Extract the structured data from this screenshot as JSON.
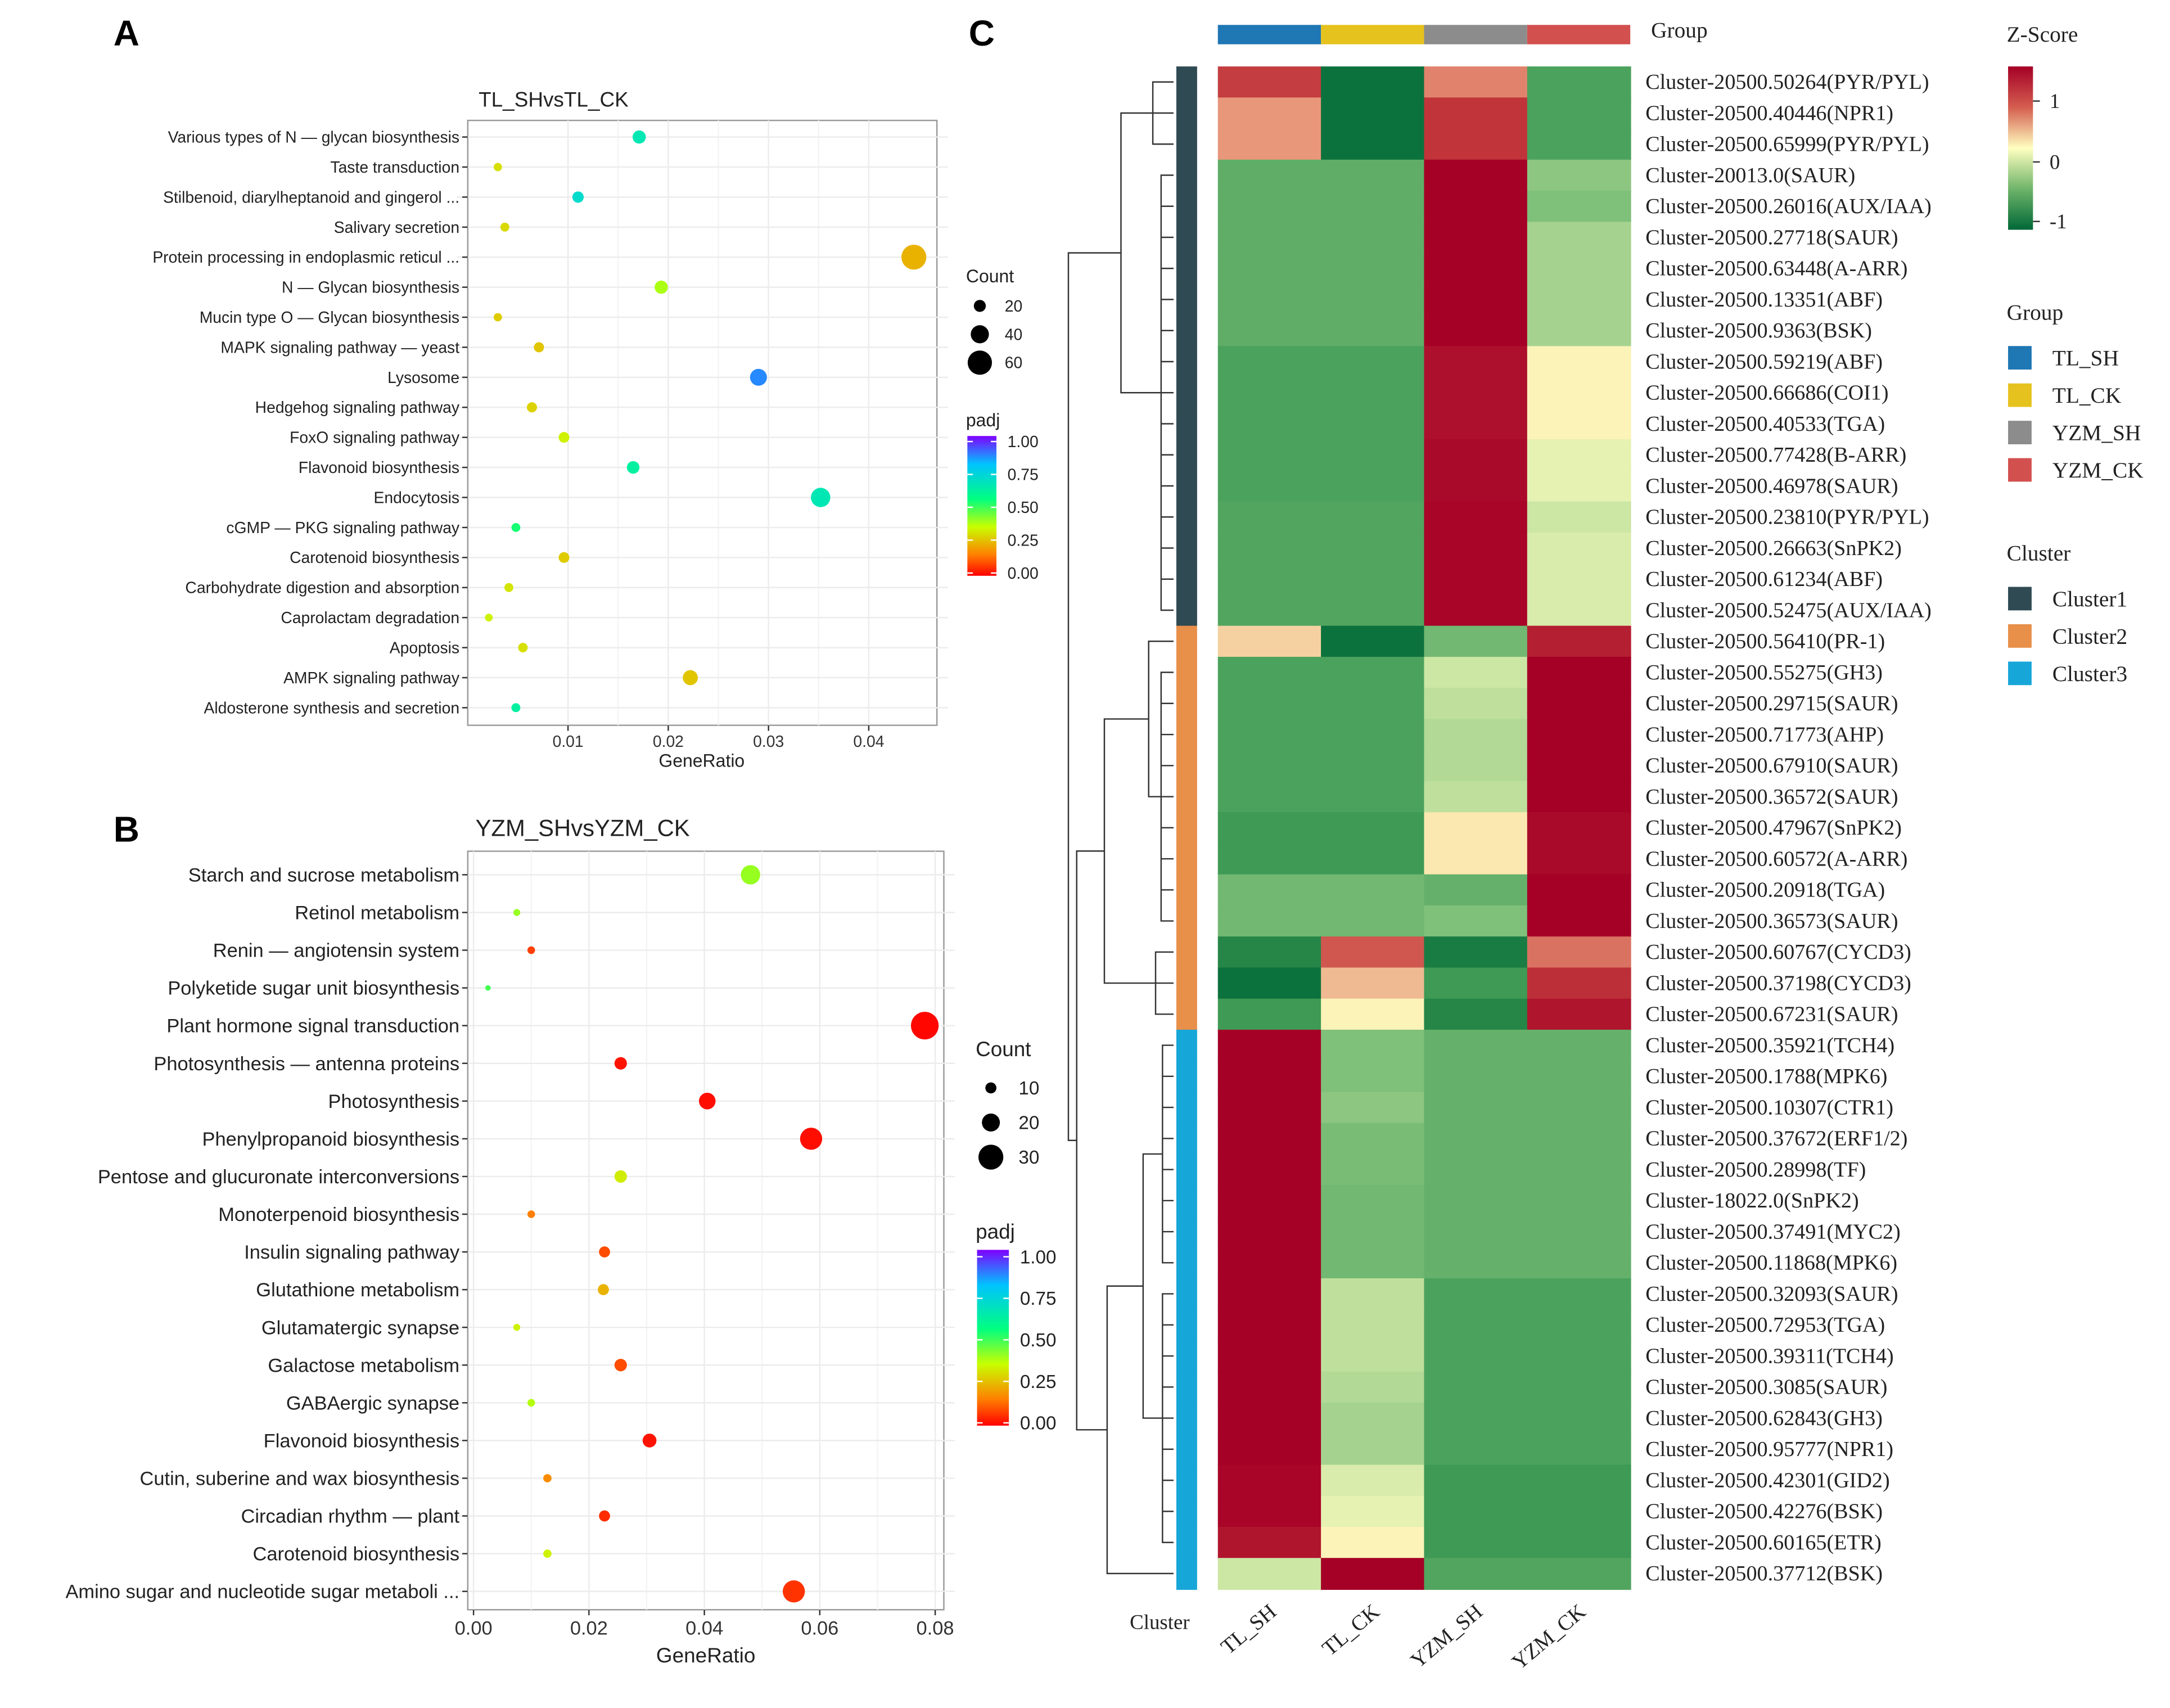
{
  "panels": {
    "a": "A",
    "b": "B",
    "c": "C"
  },
  "chart_data": [
    {
      "type": "scatter",
      "panel": "A",
      "title": "TL_SHvsTL_CK",
      "xlabel": "GeneRatio",
      "xlim": [
        0.0,
        0.0468
      ],
      "xticks": [
        0.01,
        0.02,
        0.03,
        0.04
      ],
      "xtick_labels": [
        "0.01",
        "0.02",
        "0.03",
        "0.04"
      ],
      "size_legend": {
        "title": "Count",
        "values": [
          20,
          40,
          60
        ],
        "labels": [
          "20",
          "40",
          "60"
        ]
      },
      "color_legend": {
        "title": "padj",
        "range": [
          0,
          1
        ],
        "ticks": [
          "1.00",
          "0.75",
          "0.50",
          "0.25",
          "0.00"
        ],
        "colors": [
          "#7f00ff",
          "#00c3ff",
          "#00ff80",
          "#c8ff00",
          "#ff7f00",
          "#ff0000"
        ]
      },
      "terms": [
        {
          "label": "Various types of N — glycan biosynthesis",
          "ratio": 0.0171,
          "count": 24,
          "padj": 0.68
        },
        {
          "label": "Taste transduction",
          "ratio": 0.003,
          "count": 8,
          "padj": 0.35
        },
        {
          "label": "Stilbenoid, diarylheptanoid and gingerol ...",
          "ratio": 0.011,
          "count": 18,
          "padj": 0.72
        },
        {
          "label": "Salivary secretion",
          "ratio": 0.0037,
          "count": 10,
          "padj": 0.34
        },
        {
          "label": "Protein processing in endoplasmic reticul ...",
          "ratio": 0.0445,
          "count": 62,
          "padj": 0.28
        },
        {
          "label": "N — Glycan biosynthesis",
          "ratio": 0.0193,
          "count": 24,
          "padj": 0.43
        },
        {
          "label": "Mucin type O — Glycan biosynthesis",
          "ratio": 0.003,
          "count": 8,
          "padj": 0.32
        },
        {
          "label": "MAPK signaling pathway — yeast",
          "ratio": 0.0071,
          "count": 14,
          "padj": 0.31
        },
        {
          "label": "Lysosome",
          "ratio": 0.029,
          "count": 36,
          "padj": 0.86
        },
        {
          "label": "Hedgehog signaling pathway",
          "ratio": 0.0064,
          "count": 14,
          "padj": 0.33
        },
        {
          "label": "FoxO signaling pathway",
          "ratio": 0.0096,
          "count": 16,
          "padj": 0.38
        },
        {
          "label": "Flavonoid biosynthesis",
          "ratio": 0.0165,
          "count": 22,
          "padj": 0.65
        },
        {
          "label": "Endocytosis",
          "ratio": 0.0352,
          "count": 44,
          "padj": 0.68
        },
        {
          "label": "cGMP — PKG signaling pathway",
          "ratio": 0.0048,
          "count": 10,
          "padj": 0.58
        },
        {
          "label": "Carotenoid biosynthesis",
          "ratio": 0.0096,
          "count": 16,
          "padj": 0.32
        },
        {
          "label": "Carbohydrate digestion and absorption",
          "ratio": 0.0041,
          "count": 10,
          "padj": 0.36
        },
        {
          "label": "Caprolactam degradation",
          "ratio": 0.0021,
          "count": 6,
          "padj": 0.38
        },
        {
          "label": "Apoptosis",
          "ratio": 0.0055,
          "count": 12,
          "padj": 0.35
        },
        {
          "label": "AMPK signaling pathway",
          "ratio": 0.0222,
          "count": 30,
          "padj": 0.31
        },
        {
          "label": "Aldosterone synthesis and secretion",
          "ratio": 0.0048,
          "count": 10,
          "padj": 0.65
        }
      ]
    },
    {
      "type": "scatter",
      "panel": "B",
      "title": "YZM_SHvsYZM_CK",
      "xlabel": "GeneRatio",
      "xlim": [
        -0.001,
        0.0815
      ],
      "xticks": [
        0.0,
        0.02,
        0.04,
        0.06,
        0.08
      ],
      "xtick_labels": [
        "0.00",
        "0.02",
        "0.04",
        "0.06",
        "0.08"
      ],
      "size_legend": {
        "title": "Count",
        "values": [
          10,
          20,
          30
        ],
        "labels": [
          "10",
          "20",
          "30"
        ]
      },
      "color_legend": {
        "title": "padj",
        "range": [
          0,
          1
        ],
        "ticks": [
          "1.00",
          "0.75",
          "0.50",
          "0.25",
          "0.00"
        ],
        "colors": [
          "#7f00ff",
          "#00c3ff",
          "#00ff80",
          "#c8ff00",
          "#ff7f00",
          "#ff0000"
        ]
      },
      "terms": [
        {
          "label": "Starch and sucrose metabolism",
          "ratio": 0.048,
          "count": 22,
          "padj": 0.45
        },
        {
          "label": "Retinol metabolism",
          "ratio": 0.0075,
          "count": 4,
          "padj": 0.45
        },
        {
          "label": "Renin — angiotensin system",
          "ratio": 0.01,
          "count": 5,
          "padj": 0.1
        },
        {
          "label": "Polyketide sugar unit biosynthesis",
          "ratio": 0.0025,
          "count": 2,
          "padj": 0.53
        },
        {
          "label": "Plant hormone signal transduction",
          "ratio": 0.0782,
          "count": 34,
          "padj": 0.01
        },
        {
          "label": "Photosynthesis — antenna proteins",
          "ratio": 0.0255,
          "count": 12,
          "padj": 0.03
        },
        {
          "label": "Photosynthesis",
          "ratio": 0.0405,
          "count": 18,
          "padj": 0.02
        },
        {
          "label": "Phenylpropanoid biosynthesis",
          "ratio": 0.0585,
          "count": 26,
          "padj": 0.02
        },
        {
          "label": "Pentose and glucuronate interconversions",
          "ratio": 0.0255,
          "count": 12,
          "padj": 0.37
        },
        {
          "label": "Monoterpenoid biosynthesis",
          "ratio": 0.01,
          "count": 5,
          "padj": 0.2
        },
        {
          "label": "Insulin signaling pathway",
          "ratio": 0.0227,
          "count": 10,
          "padj": 0.12
        },
        {
          "label": "Glutathione metabolism",
          "ratio": 0.0225,
          "count": 10,
          "padj": 0.28
        },
        {
          "label": "Glutamatergic synapse",
          "ratio": 0.0075,
          "count": 4,
          "padj": 0.38
        },
        {
          "label": "Galactose metabolism",
          "ratio": 0.0255,
          "count": 12,
          "padj": 0.12
        },
        {
          "label": "GABAergic synapse",
          "ratio": 0.01,
          "count": 5,
          "padj": 0.42
        },
        {
          "label": "Flavonoid biosynthesis",
          "ratio": 0.0305,
          "count": 14,
          "padj": 0.03
        },
        {
          "label": "Cutin, suberine and wax biosynthesis",
          "ratio": 0.0128,
          "count": 6,
          "padj": 0.22
        },
        {
          "label": "Circadian rhythm — plant",
          "ratio": 0.0227,
          "count": 10,
          "padj": 0.07
        },
        {
          "label": "Carotenoid biosynthesis",
          "ratio": 0.0128,
          "count": 6,
          "padj": 0.38
        },
        {
          "label": "Amino sugar and nucleotide sugar metaboli ...",
          "ratio": 0.0555,
          "count": 26,
          "padj": 0.08
        }
      ]
    },
    {
      "type": "heatmap",
      "panel": "C",
      "columns": [
        "TL_SH",
        "TL_CK",
        "YZM_SH",
        "YZM_CK"
      ],
      "column_colors": [
        "#1f77b4",
        "#e6c21e",
        "#8c8c8c",
        "#d2504e"
      ],
      "group_label": "Group",
      "cluster_label": "Cluster",
      "zscore_legend": {
        "title": "Z-Score",
        "ticks": [
          "1",
          "0",
          "-1"
        ],
        "range": [
          -1.5,
          1.5
        ]
      },
      "group_legend": {
        "title": "Group",
        "items": [
          "TL_SH",
          "TL_CK",
          "YZM_SH",
          "YZM_CK"
        ],
        "colors": [
          "#1f77b4",
          "#e6c21e",
          "#8c8c8c",
          "#d2504e"
        ]
      },
      "cluster_legend": {
        "title": "Cluster",
        "items": [
          "Cluster1",
          "Cluster2",
          "Cluster3"
        ],
        "colors": [
          "#2f4a52",
          "#e88f4a",
          "#17a6d8"
        ]
      },
      "row_clusters": [
        1,
        1,
        1,
        1,
        1,
        1,
        1,
        1,
        1,
        1,
        1,
        1,
        1,
        1,
        1,
        1,
        1,
        1,
        2,
        2,
        2,
        2,
        2,
        2,
        2,
        2,
        2,
        2,
        2,
        2,
        2,
        3,
        3,
        3,
        3,
        3,
        3,
        3,
        3,
        3,
        3,
        3,
        3,
        3,
        3,
        3,
        3,
        3,
        3
      ],
      "rows": [
        {
          "label": "Cluster-20500.50264(PYR/PYL)",
          "z": [
            0.95,
            -1.4,
            0.55,
            -0.9
          ]
        },
        {
          "label": "Cluster-20500.40446(NPR1)",
          "z": [
            0.45,
            -1.4,
            1.0,
            -0.9
          ]
        },
        {
          "label": "Cluster-20500.65999(PYR/PYL)",
          "z": [
            0.45,
            -1.4,
            1.0,
            -0.9
          ]
        },
        {
          "label": "Cluster-20013.0(SAUR)",
          "z": [
            -0.75,
            -0.75,
            1.5,
            -0.45
          ]
        },
        {
          "label": "Cluster-20500.26016(AUX/IAA)",
          "z": [
            -0.75,
            -0.75,
            1.5,
            -0.5
          ]
        },
        {
          "label": "Cluster-20500.27718(SAUR)",
          "z": [
            -0.75,
            -0.75,
            1.5,
            -0.35
          ]
        },
        {
          "label": "Cluster-20500.63448(A-ARR)",
          "z": [
            -0.75,
            -0.75,
            1.5,
            -0.35
          ]
        },
        {
          "label": "Cluster-20500.13351(ABF)",
          "z": [
            -0.75,
            -0.75,
            1.5,
            -0.35
          ]
        },
        {
          "label": "Cluster-20500.9363(BSK)",
          "z": [
            -0.75,
            -0.75,
            1.5,
            -0.35
          ]
        },
        {
          "label": "Cluster-20500.59219(ABF)",
          "z": [
            -0.9,
            -0.9,
            1.35,
            0.05
          ]
        },
        {
          "label": "Cluster-20500.66686(COI1)",
          "z": [
            -0.9,
            -0.9,
            1.35,
            0.05
          ]
        },
        {
          "label": "Cluster-20500.40533(TGA)",
          "z": [
            -0.9,
            -0.9,
            1.35,
            0.05
          ]
        },
        {
          "label": "Cluster-20500.77428(B-ARR)",
          "z": [
            -0.9,
            -0.9,
            1.4,
            -0.1
          ]
        },
        {
          "label": "Cluster-20500.46978(SAUR)",
          "z": [
            -0.9,
            -0.9,
            1.4,
            -0.1
          ]
        },
        {
          "label": "Cluster-20500.23810(PYR/PYL)",
          "z": [
            -0.85,
            -0.85,
            1.45,
            -0.2
          ]
        },
        {
          "label": "Cluster-20500.26663(SnPK2)",
          "z": [
            -0.85,
            -0.85,
            1.45,
            -0.15
          ]
        },
        {
          "label": "Cluster-20500.61234(ABF)",
          "z": [
            -0.85,
            -0.85,
            1.45,
            -0.15
          ]
        },
        {
          "label": "Cluster-20500.52475(AUX/IAA)",
          "z": [
            -0.85,
            -0.85,
            1.45,
            -0.15
          ]
        },
        {
          "label": "Cluster-20500.56410(PR-1)",
          "z": [
            0.2,
            -1.4,
            -0.6,
            1.2
          ]
        },
        {
          "label": "Cluster-20500.55275(GH3)",
          "z": [
            -0.9,
            -0.9,
            -0.2,
            1.5
          ]
        },
        {
          "label": "Cluster-20500.29715(SAUR)",
          "z": [
            -0.9,
            -0.9,
            -0.25,
            1.5
          ]
        },
        {
          "label": "Cluster-20500.71773(AHP)",
          "z": [
            -0.9,
            -0.9,
            -0.3,
            1.5
          ]
        },
        {
          "label": "Cluster-20500.67910(SAUR)",
          "z": [
            -0.9,
            -0.9,
            -0.3,
            1.5
          ]
        },
        {
          "label": "Cluster-20500.36572(SAUR)",
          "z": [
            -0.9,
            -0.9,
            -0.25,
            1.5
          ]
        },
        {
          "label": "Cluster-20500.47967(SnPK2)",
          "z": [
            -1.0,
            -1.0,
            0.1,
            1.4
          ]
        },
        {
          "label": "Cluster-20500.60572(A-ARR)",
          "z": [
            -1.0,
            -1.0,
            0.1,
            1.4
          ]
        },
        {
          "label": "Cluster-20500.20918(TGA)",
          "z": [
            -0.6,
            -0.6,
            -0.7,
            1.5
          ]
        },
        {
          "label": "Cluster-20500.36573(SAUR)",
          "z": [
            -0.6,
            -0.6,
            -0.5,
            1.5
          ]
        },
        {
          "label": "Cluster-20500.60767(CYCD3)",
          "z": [
            -1.2,
            0.8,
            -1.3,
            0.65
          ]
        },
        {
          "label": "Cluster-20500.37198(CYCD3)",
          "z": [
            -1.4,
            0.3,
            -1.0,
            1.05
          ]
        },
        {
          "label": "Cluster-20500.67231(SAUR)",
          "z": [
            -1.0,
            0.05,
            -1.2,
            1.3
          ]
        },
        {
          "label": "Cluster-20500.35921(TCH4)",
          "z": [
            1.5,
            -0.5,
            -0.7,
            -0.7
          ]
        },
        {
          "label": "Cluster-20500.1788(MPK6)",
          "z": [
            1.5,
            -0.5,
            -0.7,
            -0.7
          ]
        },
        {
          "label": "Cluster-20500.10307(CTR1)",
          "z": [
            1.5,
            -0.45,
            -0.7,
            -0.7
          ]
        },
        {
          "label": "Cluster-20500.37672(ERF1/2)",
          "z": [
            1.5,
            -0.55,
            -0.7,
            -0.7
          ]
        },
        {
          "label": "Cluster-20500.28998(TF)",
          "z": [
            1.5,
            -0.55,
            -0.7,
            -0.7
          ]
        },
        {
          "label": "Cluster-18022.0(SnPK2)",
          "z": [
            1.5,
            -0.6,
            -0.7,
            -0.7
          ]
        },
        {
          "label": "Cluster-20500.37491(MYC2)",
          "z": [
            1.5,
            -0.6,
            -0.7,
            -0.7
          ]
        },
        {
          "label": "Cluster-20500.11868(MPK6)",
          "z": [
            1.5,
            -0.6,
            -0.7,
            -0.7
          ]
        },
        {
          "label": "Cluster-20500.32093(SAUR)",
          "z": [
            1.5,
            -0.25,
            -0.9,
            -0.9
          ]
        },
        {
          "label": "Cluster-20500.72953(TGA)",
          "z": [
            1.5,
            -0.25,
            -0.9,
            -0.9
          ]
        },
        {
          "label": "Cluster-20500.39311(TCH4)",
          "z": [
            1.5,
            -0.25,
            -0.9,
            -0.9
          ]
        },
        {
          "label": "Cluster-20500.3085(SAUR)",
          "z": [
            1.5,
            -0.3,
            -0.9,
            -0.9
          ]
        },
        {
          "label": "Cluster-20500.62843(GH3)",
          "z": [
            1.5,
            -0.35,
            -0.9,
            -0.9
          ]
        },
        {
          "label": "Cluster-20500.95777(NPR1)",
          "z": [
            1.5,
            -0.35,
            -0.9,
            -0.9
          ]
        },
        {
          "label": "Cluster-20500.42301(GID2)",
          "z": [
            1.45,
            -0.15,
            -1.0,
            -1.0
          ]
        },
        {
          "label": "Cluster-20500.42276(BSK)",
          "z": [
            1.45,
            -0.1,
            -1.0,
            -1.0
          ]
        },
        {
          "label": "Cluster-20500.60165(ETR)",
          "z": [
            1.3,
            0.05,
            -1.0,
            -1.0
          ]
        },
        {
          "label": "Cluster-20500.37712(BSK)",
          "z": [
            -0.2,
            1.5,
            -0.85,
            -0.85
          ]
        }
      ]
    }
  ]
}
